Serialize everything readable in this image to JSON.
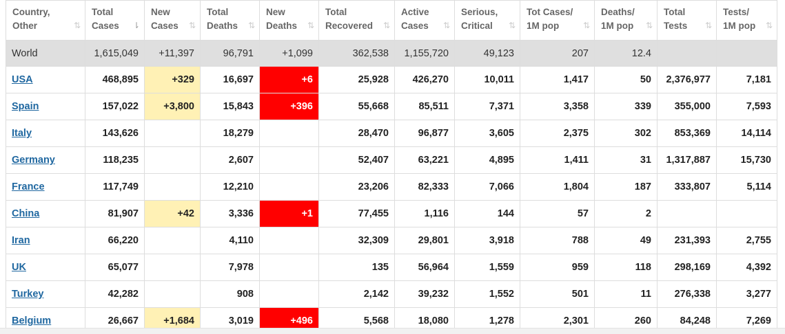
{
  "columns": [
    {
      "line1": "Country,",
      "line2": "Other",
      "sorted": false
    },
    {
      "line1": "Total",
      "line2": "Cases",
      "sorted": true
    },
    {
      "line1": "New",
      "line2": "Cases",
      "sorted": false
    },
    {
      "line1": "Total",
      "line2": "Deaths",
      "sorted": false
    },
    {
      "line1": "New",
      "line2": "Deaths",
      "sorted": false
    },
    {
      "line1": "Total",
      "line2": "Recovered",
      "sorted": false
    },
    {
      "line1": "Active",
      "line2": "Cases",
      "sorted": false
    },
    {
      "line1": "Serious,",
      "line2": "Critical",
      "sorted": false
    },
    {
      "line1": "Tot Cases/",
      "line2": "1M pop",
      "sorted": false
    },
    {
      "line1": "Deaths/",
      "line2": "1M pop",
      "sorted": false
    },
    {
      "line1": "Total",
      "line2": "Tests",
      "sorted": false
    },
    {
      "line1": "Tests/",
      "line2": "1M pop",
      "sorted": false
    }
  ],
  "sort_icons": {
    "default": "⇅",
    "active": "⇂"
  },
  "world": {
    "country": "World",
    "total_cases": "1,615,049",
    "new_cases": "+11,397",
    "total_deaths": "96,791",
    "new_deaths": "+1,099",
    "total_recovered": "362,538",
    "active_cases": "1,155,720",
    "serious_critical": "49,123",
    "tot_cases_per_1m": "207",
    "deaths_per_1m": "12.4",
    "total_tests": "",
    "tests_per_1m": ""
  },
  "rows": [
    {
      "country": "USA",
      "total_cases": "468,895",
      "new_cases": "+329",
      "total_deaths": "16,697",
      "new_deaths": "+6",
      "total_recovered": "25,928",
      "active_cases": "426,270",
      "serious_critical": "10,011",
      "tot_cases_per_1m": "1,417",
      "deaths_per_1m": "50",
      "total_tests": "2,376,977",
      "tests_per_1m": "7,181"
    },
    {
      "country": "Spain",
      "total_cases": "157,022",
      "new_cases": "+3,800",
      "total_deaths": "15,843",
      "new_deaths": "+396",
      "total_recovered": "55,668",
      "active_cases": "85,511",
      "serious_critical": "7,371",
      "tot_cases_per_1m": "3,358",
      "deaths_per_1m": "339",
      "total_tests": "355,000",
      "tests_per_1m": "7,593"
    },
    {
      "country": "Italy",
      "total_cases": "143,626",
      "new_cases": "",
      "total_deaths": "18,279",
      "new_deaths": "",
      "total_recovered": "28,470",
      "active_cases": "96,877",
      "serious_critical": "3,605",
      "tot_cases_per_1m": "2,375",
      "deaths_per_1m": "302",
      "total_tests": "853,369",
      "tests_per_1m": "14,114"
    },
    {
      "country": "Germany",
      "total_cases": "118,235",
      "new_cases": "",
      "total_deaths": "2,607",
      "new_deaths": "",
      "total_recovered": "52,407",
      "active_cases": "63,221",
      "serious_critical": "4,895",
      "tot_cases_per_1m": "1,411",
      "deaths_per_1m": "31",
      "total_tests": "1,317,887",
      "tests_per_1m": "15,730"
    },
    {
      "country": "France",
      "total_cases": "117,749",
      "new_cases": "",
      "total_deaths": "12,210",
      "new_deaths": "",
      "total_recovered": "23,206",
      "active_cases": "82,333",
      "serious_critical": "7,066",
      "tot_cases_per_1m": "1,804",
      "deaths_per_1m": "187",
      "total_tests": "333,807",
      "tests_per_1m": "5,114"
    },
    {
      "country": "China",
      "total_cases": "81,907",
      "new_cases": "+42",
      "total_deaths": "3,336",
      "new_deaths": "+1",
      "total_recovered": "77,455",
      "active_cases": "1,116",
      "serious_critical": "144",
      "tot_cases_per_1m": "57",
      "deaths_per_1m": "2",
      "total_tests": "",
      "tests_per_1m": ""
    },
    {
      "country": "Iran",
      "total_cases": "66,220",
      "new_cases": "",
      "total_deaths": "4,110",
      "new_deaths": "",
      "total_recovered": "32,309",
      "active_cases": "29,801",
      "serious_critical": "3,918",
      "tot_cases_per_1m": "788",
      "deaths_per_1m": "49",
      "total_tests": "231,393",
      "tests_per_1m": "2,755"
    },
    {
      "country": "UK",
      "total_cases": "65,077",
      "new_cases": "",
      "total_deaths": "7,978",
      "new_deaths": "",
      "total_recovered": "135",
      "active_cases": "56,964",
      "serious_critical": "1,559",
      "tot_cases_per_1m": "959",
      "deaths_per_1m": "118",
      "total_tests": "298,169",
      "tests_per_1m": "4,392"
    },
    {
      "country": "Turkey",
      "total_cases": "42,282",
      "new_cases": "",
      "total_deaths": "908",
      "new_deaths": "",
      "total_recovered": "2,142",
      "active_cases": "39,232",
      "serious_critical": "1,552",
      "tot_cases_per_1m": "501",
      "deaths_per_1m": "11",
      "total_tests": "276,338",
      "tests_per_1m": "3,277"
    },
    {
      "country": "Belgium",
      "total_cases": "26,667",
      "new_cases": "+1,684",
      "total_deaths": "3,019",
      "new_deaths": "+496",
      "total_recovered": "5,568",
      "active_cases": "18,080",
      "serious_critical": "1,278",
      "tot_cases_per_1m": "2,301",
      "deaths_per_1m": "260",
      "total_tests": "84,248",
      "tests_per_1m": "7,269"
    }
  ],
  "colors": {
    "link": "#1f67a0",
    "new_cases_highlight": "#fff1b5",
    "new_deaths_highlight": "#ff0000",
    "world_row": "#dfdfdf"
  }
}
